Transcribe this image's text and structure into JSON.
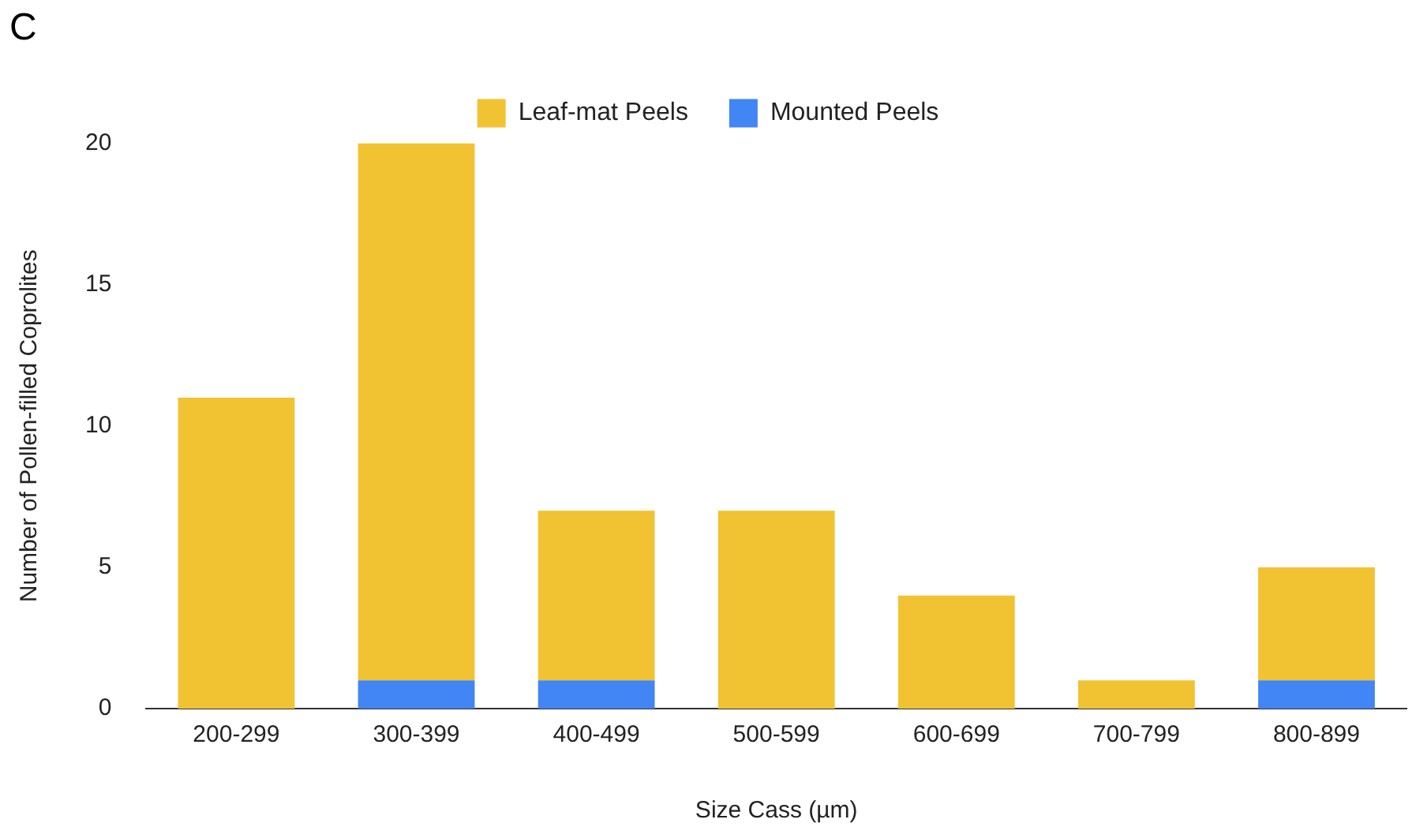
{
  "chart_data": {
    "type": "bar",
    "title": "C",
    "xlabel": "Size Cass (µm)",
    "ylabel": "Number of Pollen-filled Coprolites",
    "categories": [
      "200-299",
      "300-399",
      "400-499",
      "500-599",
      "600-699",
      "700-799",
      "800-899"
    ],
    "series": [
      {
        "name": "Mounted Peels",
        "color": "#4285f4",
        "values": [
          0,
          1,
          1,
          0,
          0,
          0,
          1
        ]
      },
      {
        "name": "Leaf-mat Peels",
        "color": "#f1c232",
        "values": [
          11,
          19,
          6,
          7,
          4,
          1,
          4
        ]
      }
    ],
    "stacked": true,
    "ylim": [
      0,
      20
    ],
    "yticks": [
      0,
      5,
      10,
      15,
      20
    ],
    "grid": false,
    "legend": "top"
  }
}
